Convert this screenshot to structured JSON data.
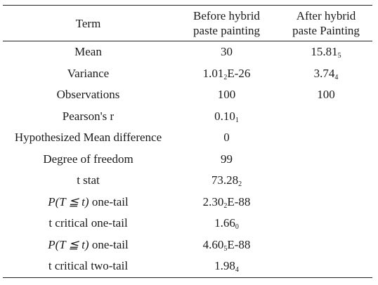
{
  "header": {
    "term": "Term",
    "before_line1": "Before hybrid",
    "before_line2": "paste painting",
    "after_line1": "After hybrid",
    "after_line2": "paste Painting"
  },
  "rows": [
    {
      "term": "Mean",
      "before": "30",
      "before_sub": "",
      "before_suffix": "",
      "after": "15.81",
      "after_sub": "5",
      "after_suffix": ""
    },
    {
      "term": "Variance",
      "before": "1.01",
      "before_sub": "2",
      "before_suffix": "E-26",
      "after": "3.74",
      "after_sub": "4",
      "after_suffix": ""
    },
    {
      "term": "Observations",
      "before": "100",
      "before_sub": "",
      "before_suffix": "",
      "after": "100",
      "after_sub": "",
      "after_suffix": ""
    },
    {
      "term": "Pearson's r",
      "before": "0.10",
      "before_sub": "1",
      "before_suffix": "",
      "after": "",
      "after_sub": "",
      "after_suffix": ""
    },
    {
      "term": "Hypothesized Mean difference",
      "before": "0",
      "before_sub": "",
      "before_suffix": "",
      "after": "",
      "after_sub": "",
      "after_suffix": ""
    },
    {
      "term": "Degree of freedom",
      "before": "99",
      "before_sub": "",
      "before_suffix": "",
      "after": "",
      "after_sub": "",
      "after_suffix": ""
    },
    {
      "term": "t stat",
      "before": "73.28",
      "before_sub": "2",
      "before_suffix": "",
      "after": "",
      "after_sub": "",
      "after_suffix": ""
    },
    {
      "term_math": "P(T ≦ t)",
      "term_rest": " one-tail",
      "before": "2.30",
      "before_sub": "2",
      "before_suffix": "E-88",
      "after": "",
      "after_sub": "",
      "after_suffix": ""
    },
    {
      "term": "t critical one-tail",
      "before": "1.66",
      "before_sub": "0",
      "before_suffix": "",
      "after": "",
      "after_sub": "",
      "after_suffix": ""
    },
    {
      "term_math": "P(T ≦ t)",
      "term_rest": " one-tail",
      "before": "4.60",
      "before_sub": "5",
      "before_suffix": "E-88",
      "after": "",
      "after_sub": "",
      "after_suffix": ""
    },
    {
      "term": "t critical two-tail",
      "before": "1.98",
      "before_sub": "4",
      "before_suffix": "",
      "after": "",
      "after_sub": "",
      "after_suffix": ""
    }
  ]
}
